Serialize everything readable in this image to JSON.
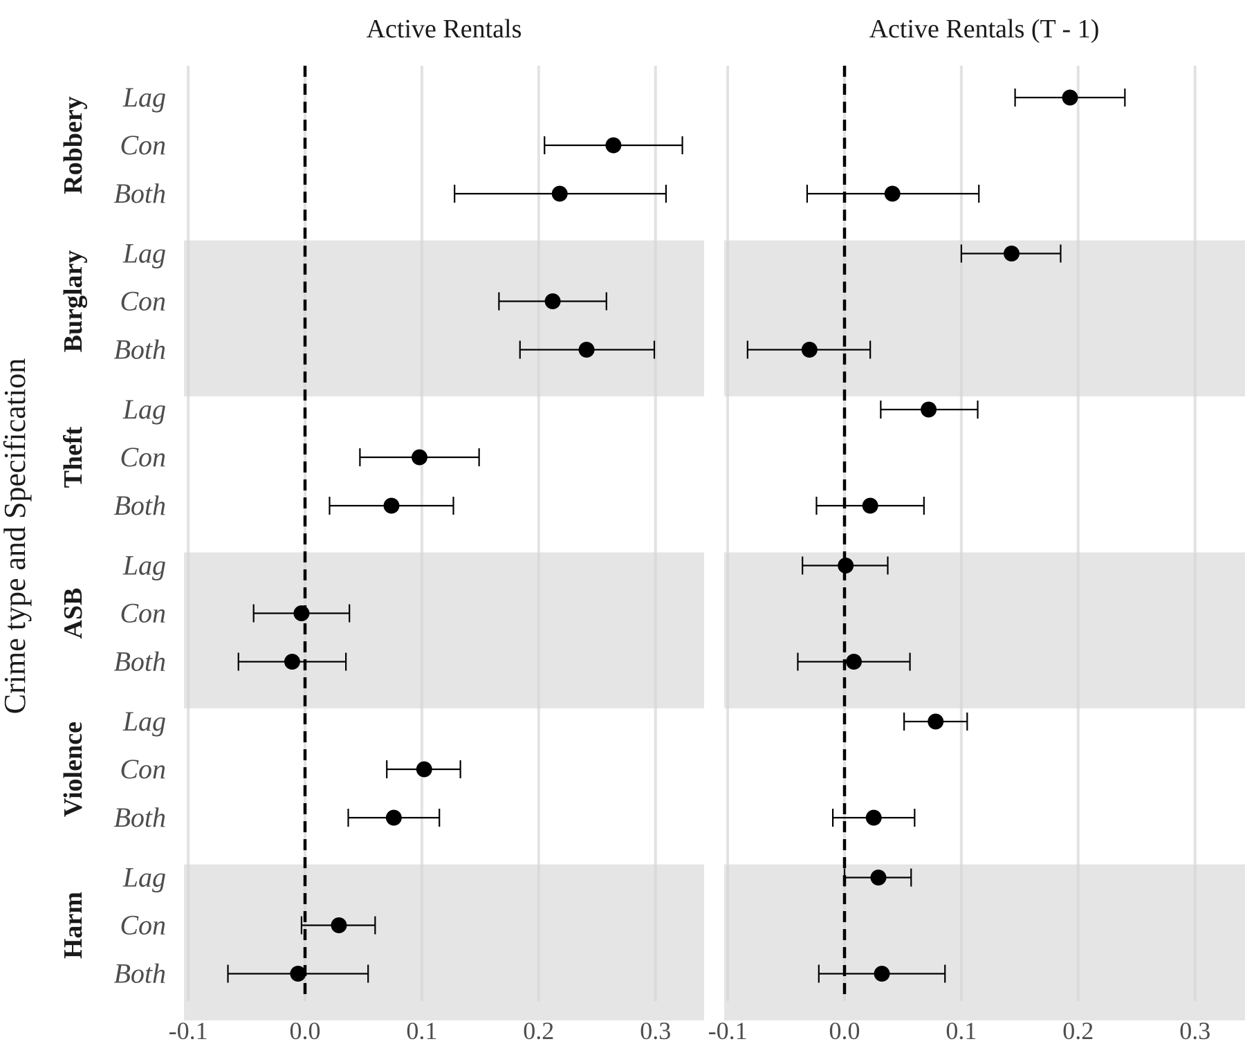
{
  "chart_data": {
    "type": "scatter",
    "subtype": "coefficient-plot-with-confidence-intervals",
    "ylabel": "Crime type and Specification",
    "groups": [
      "Robbery",
      "Burglary",
      "Theft",
      "ASB",
      "Violence",
      "Harm"
    ],
    "specifications": [
      "Lag",
      "Con",
      "Both"
    ],
    "xlim": [
      -0.105,
      0.345
    ],
    "x_ticks": [
      "-0.1",
      "0.0",
      "0.1",
      "0.2",
      "0.3"
    ],
    "x_tick_values": [
      -0.1,
      0.0,
      0.1,
      0.2,
      0.3
    ],
    "reference_line": 0.0,
    "reference_line_style": "dashed",
    "band_shading": "alternating grey bands on Burglary, ASB, Harm",
    "band_color": "#e5e5e5",
    "grid": "vertical major gridlines",
    "legend": "none",
    "panels": [
      {
        "title": "Active Rentals",
        "points": [
          {
            "group": "Robbery",
            "spec": "Con",
            "estimate": 0.264,
            "low": 0.205,
            "high": 0.323
          },
          {
            "group": "Robbery",
            "spec": "Both",
            "estimate": 0.218,
            "low": 0.128,
            "high": 0.309
          },
          {
            "group": "Burglary",
            "spec": "Con",
            "estimate": 0.212,
            "low": 0.166,
            "high": 0.258
          },
          {
            "group": "Burglary",
            "spec": "Both",
            "estimate": 0.241,
            "low": 0.184,
            "high": 0.299
          },
          {
            "group": "Theft",
            "spec": "Con",
            "estimate": 0.098,
            "low": 0.047,
            "high": 0.149
          },
          {
            "group": "Theft",
            "spec": "Both",
            "estimate": 0.074,
            "low": 0.021,
            "high": 0.127
          },
          {
            "group": "ASB",
            "spec": "Con",
            "estimate": -0.003,
            "low": -0.044,
            "high": 0.038
          },
          {
            "group": "ASB",
            "spec": "Both",
            "estimate": -0.011,
            "low": -0.057,
            "high": 0.035
          },
          {
            "group": "Violence",
            "spec": "Con",
            "estimate": 0.102,
            "low": 0.07,
            "high": 0.133
          },
          {
            "group": "Violence",
            "spec": "Both",
            "estimate": 0.076,
            "low": 0.037,
            "high": 0.115
          },
          {
            "group": "Harm",
            "spec": "Con",
            "estimate": 0.029,
            "low": -0.003,
            "high": 0.06
          },
          {
            "group": "Harm",
            "spec": "Both",
            "estimate": -0.006,
            "low": -0.066,
            "high": 0.054
          }
        ]
      },
      {
        "title": "Active Rentals (T - 1)",
        "points": [
          {
            "group": "Robbery",
            "spec": "Lag",
            "estimate": 0.193,
            "low": 0.146,
            "high": 0.24
          },
          {
            "group": "Robbery",
            "spec": "Both",
            "estimate": 0.041,
            "low": -0.032,
            "high": 0.115
          },
          {
            "group": "Burglary",
            "spec": "Lag",
            "estimate": 0.143,
            "low": 0.1,
            "high": 0.185
          },
          {
            "group": "Burglary",
            "spec": "Both",
            "estimate": -0.03,
            "low": -0.083,
            "high": 0.022
          },
          {
            "group": "Theft",
            "spec": "Lag",
            "estimate": 0.072,
            "low": 0.031,
            "high": 0.114
          },
          {
            "group": "Theft",
            "spec": "Both",
            "estimate": 0.022,
            "low": -0.024,
            "high": 0.068
          },
          {
            "group": "ASB",
            "spec": "Lag",
            "estimate": 0.001,
            "low": -0.036,
            "high": 0.037
          },
          {
            "group": "ASB",
            "spec": "Both",
            "estimate": 0.008,
            "low": -0.04,
            "high": 0.056
          },
          {
            "group": "Violence",
            "spec": "Lag",
            "estimate": 0.078,
            "low": 0.051,
            "high": 0.105
          },
          {
            "group": "Violence",
            "spec": "Both",
            "estimate": 0.025,
            "low": -0.01,
            "high": 0.06
          },
          {
            "group": "Harm",
            "spec": "Lag",
            "estimate": 0.029,
            "low": 0.0,
            "high": 0.057
          },
          {
            "group": "Harm",
            "spec": "Both",
            "estimate": 0.032,
            "low": -0.022,
            "high": 0.086
          }
        ]
      }
    ]
  }
}
